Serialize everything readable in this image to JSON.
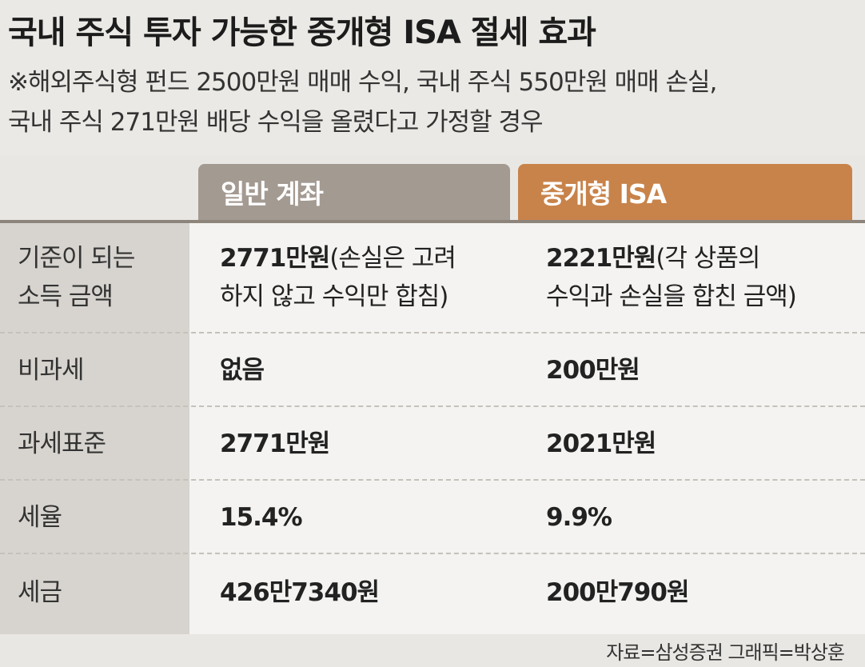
{
  "title": "국내 주식 투자 가능한 중개형 ISA 절세 효과",
  "subtitle": [
    "※해외주식형 펀드 2500만원 매매 수익, 국내 주식 550만원 매매 손실,",
    "국내 주식 271만원 배당 수익을 올렸다고 가정할 경우"
  ],
  "chart_data": {
    "type": "table",
    "columns": [
      "일반 계좌",
      "중개형 ISA"
    ],
    "rows": [
      {
        "label": [
          "기준이 되는",
          "소득 금액"
        ],
        "general": {
          "value": "2771만원",
          "note": [
            "(손실은 고려",
            "하지 않고 수익만 합침)"
          ]
        },
        "isa": {
          "value": "2221만원",
          "note": [
            "(각 상품의",
            "수익과 손실을 합친 금액)"
          ]
        }
      },
      {
        "label": [
          "비과세"
        ],
        "general": {
          "value": "없음"
        },
        "isa": {
          "value": "200만원"
        }
      },
      {
        "label": [
          "과세표준"
        ],
        "general": {
          "value": "2771만원"
        },
        "isa": {
          "value": "2021만원"
        }
      },
      {
        "label": [
          "세율"
        ],
        "general": {
          "value": "15.4%"
        },
        "isa": {
          "value": "9.9%"
        }
      },
      {
        "label": [
          "세금"
        ],
        "general": {
          "value": "426만7340원"
        },
        "isa": {
          "value": "200만790원"
        }
      }
    ]
  },
  "colors": {
    "general_header": "#a39a91",
    "isa_header": "#c8834a"
  },
  "footer": "자료=삼성증권 그래픽=박상훈"
}
